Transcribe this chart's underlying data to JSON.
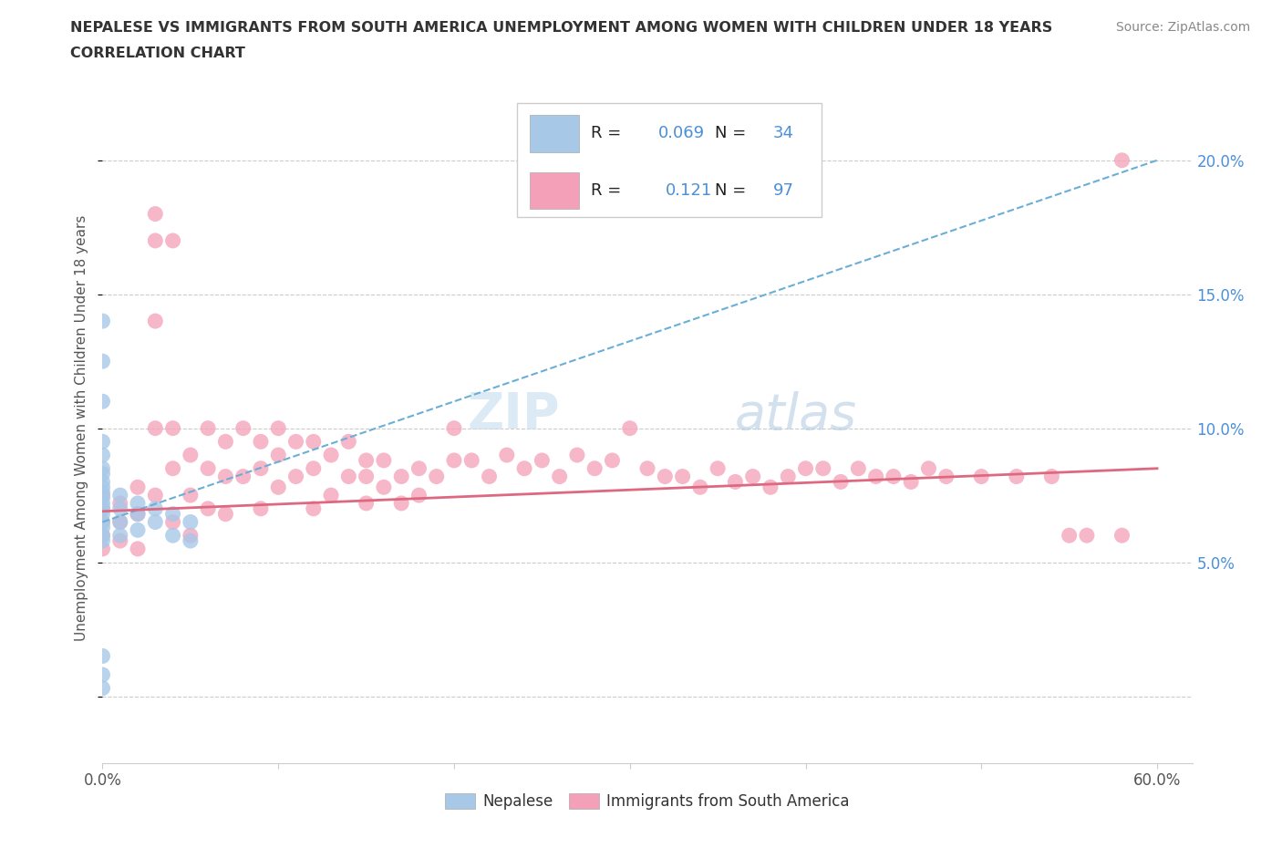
{
  "title_line1": "NEPALESE VS IMMIGRANTS FROM SOUTH AMERICA UNEMPLOYMENT AMONG WOMEN WITH CHILDREN UNDER 18 YEARS",
  "title_line2": "CORRELATION CHART",
  "source": "Source: ZipAtlas.com",
  "ylabel": "Unemployment Among Women with Children Under 18 years",
  "xlim": [
    0.0,
    0.62
  ],
  "ylim": [
    -0.025,
    0.225
  ],
  "nepalese_color": "#a8c8e8",
  "south_america_color": "#f4a0b8",
  "nepalese_R": 0.069,
  "nepalese_N": 34,
  "south_america_R": 0.121,
  "south_america_N": 97,
  "nepalese_line_color": "#6baed6",
  "south_america_line_color": "#de6880",
  "blue_text_color": "#4a90d9",
  "watermark_color": "#c8dff0",
  "grid_color": "#cccccc",
  "title_color": "#333333",
  "source_color": "#888888",
  "tick_color": "#555555"
}
